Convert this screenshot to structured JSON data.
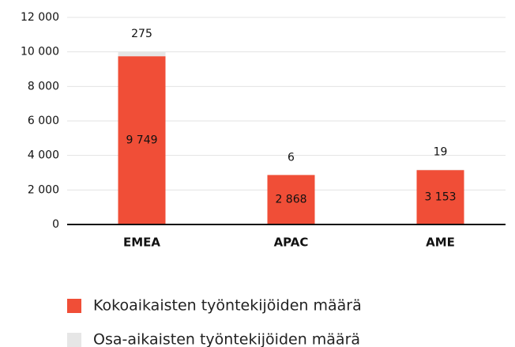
{
  "chart_data": {
    "type": "stacked-bar",
    "categories": [
      "EMEA",
      "APAC",
      "AME"
    ],
    "series": [
      {
        "name": "Kokoaikaisten työntekijöiden määrä",
        "color": "#f04e37",
        "values": [
          9749,
          2868,
          3153
        ],
        "value_labels": [
          "9 749",
          "2 868",
          "3 153"
        ]
      },
      {
        "name": "Osa-aikaisten työntekijöiden määrä",
        "color": "#e6e6e6",
        "values": [
          275,
          6,
          19
        ]
      }
    ],
    "ylim": [
      0,
      12000
    ],
    "yticks": [
      0,
      {
        "value": 2000,
        "label": "2 000"
      },
      {
        "value": 4000,
        "label": "4 000"
      },
      {
        "value": 6000,
        "label": "6 000"
      },
      {
        "value": 8000,
        "label": "8 000"
      },
      {
        "value": 10000,
        "label": "10 000"
      },
      {
        "value": 12000,
        "label": "12 000"
      }
    ],
    "grid": true,
    "legend": "bottom"
  }
}
